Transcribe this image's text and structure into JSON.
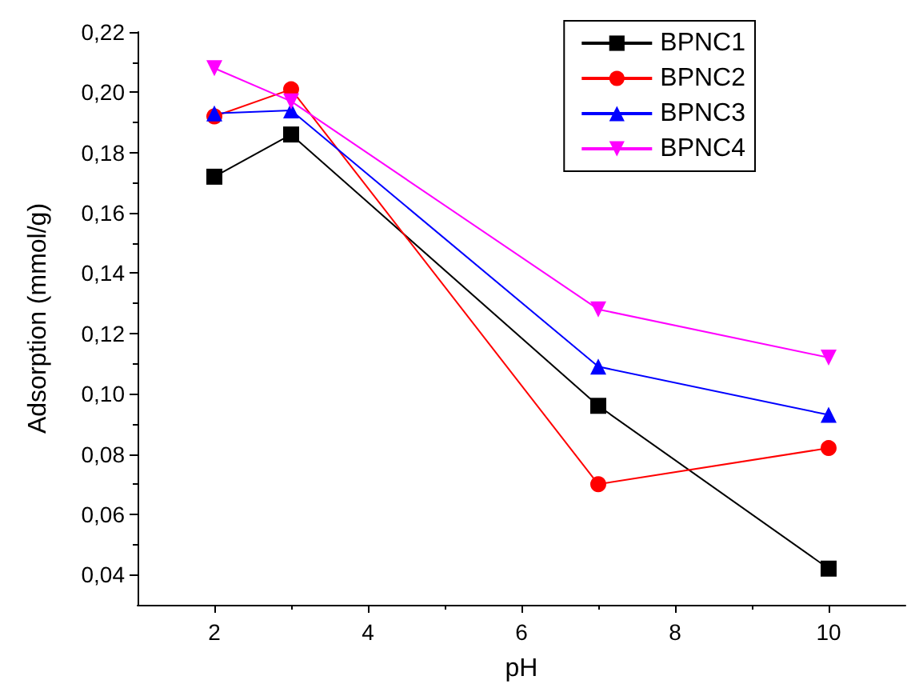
{
  "chart_data": {
    "type": "line",
    "xlabel": "pH",
    "ylabel": "Adsorption (mmol/g)",
    "x": [
      2,
      3,
      7,
      10
    ],
    "series": [
      {
        "name": "BPNC1",
        "color": "#000000",
        "marker": "square",
        "values": [
          0.172,
          0.186,
          0.096,
          0.042
        ]
      },
      {
        "name": "BPNC2",
        "color": "#ff0000",
        "marker": "circle",
        "values": [
          0.192,
          0.201,
          0.07,
          0.082
        ]
      },
      {
        "name": "BPNC3",
        "color": "#0000ff",
        "marker": "triangle",
        "values": [
          0.193,
          0.194,
          0.109,
          0.093
        ]
      },
      {
        "name": "BPNC4",
        "color": "#ff00ff",
        "marker": "triangle-down",
        "values": [
          0.208,
          0.197,
          0.128,
          0.112
        ]
      }
    ],
    "xlim": [
      1,
      11
    ],
    "xticks": [
      2,
      4,
      6,
      8,
      10
    ],
    "ylim": [
      0.03,
      0.22
    ],
    "yticks": [
      {
        "value": 0.04,
        "label": "0,04"
      },
      {
        "value": 0.06,
        "label": "0,06"
      },
      {
        "value": 0.08,
        "label": "0,08"
      },
      {
        "value": 0.1,
        "label": "0,10"
      },
      {
        "value": 0.12,
        "label": "0,12"
      },
      {
        "value": 0.14,
        "label": "0,14"
      },
      {
        "value": 0.16,
        "label": "0,16"
      },
      {
        "value": 0.18,
        "label": "0,18"
      },
      {
        "value": 0.2,
        "label": "0,20"
      },
      {
        "value": 0.22,
        "label": "0,22"
      }
    ],
    "grid": false,
    "legend": "top right",
    "line_style": "solid"
  }
}
